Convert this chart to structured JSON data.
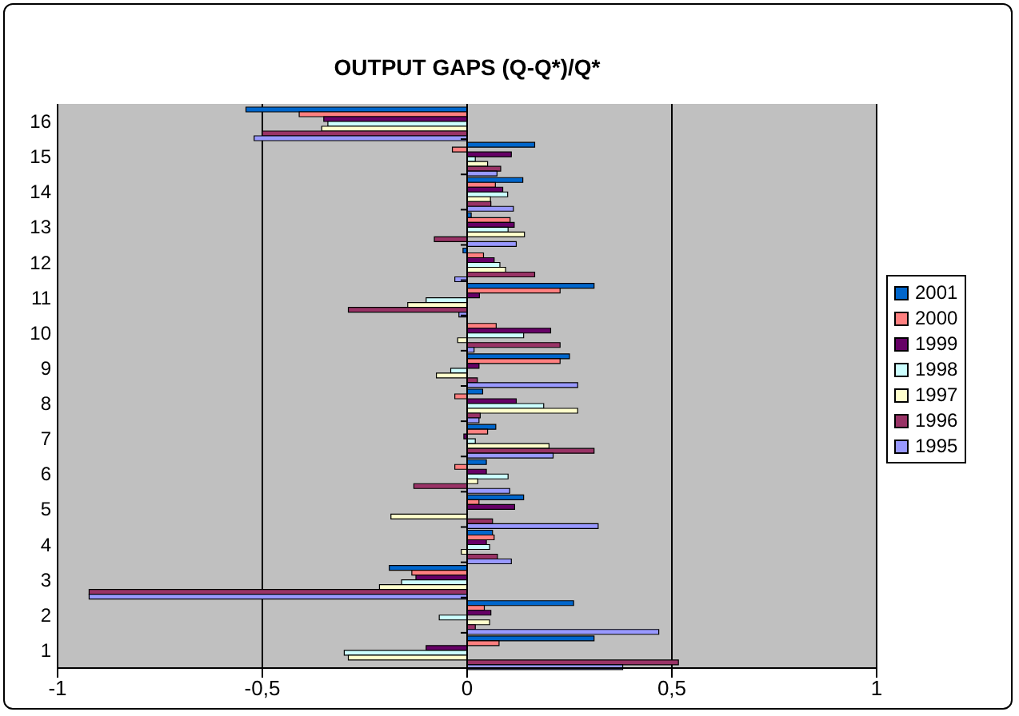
{
  "chart_data": {
    "type": "bar",
    "orientation": "horizontal",
    "title": "OUTPUT GAPS (Q-Q*)/Q*",
    "categories": [
      "16",
      "15",
      "14",
      "13",
      "12",
      "11",
      "10",
      "9",
      "8",
      "7",
      "6",
      "5",
      "4",
      "3",
      "2",
      "1"
    ],
    "series": [
      {
        "name": "2001",
        "color": "#0066cc",
        "values": [
          -0.54,
          0.165,
          0.136,
          0.01,
          -0.01,
          0.31,
          0,
          0.25,
          0.038,
          0.07,
          0.047,
          0.138,
          0.062,
          -0.19,
          0.26,
          0.31
        ]
      },
      {
        "name": "2000",
        "color": "#ff8080",
        "values": [
          -0.41,
          -0.036,
          0.069,
          0.105,
          0.04,
          0.227,
          0.071,
          0.227,
          -0.03,
          0.05,
          -0.03,
          0.029,
          0.066,
          -0.135,
          0.042,
          0.078
        ]
      },
      {
        "name": "1999",
        "color": "#660066",
        "values": [
          -0.35,
          0.108,
          0.087,
          0.115,
          0.066,
          0.03,
          0.204,
          0.029,
          0.12,
          -0.008,
          0.047,
          0.116,
          0.047,
          -0.125,
          0.058,
          -0.1
        ]
      },
      {
        "name": "1998",
        "color": "#ccffff",
        "values": [
          -0.34,
          0.02,
          0.099,
          0.1,
          0.08,
          -0.1,
          0.138,
          -0.04,
          0.187,
          0.02,
          0.1,
          0,
          0.055,
          -0.16,
          -0.068,
          -0.3
        ]
      },
      {
        "name": "1997",
        "color": "#ffffcc",
        "values": [
          -0.355,
          0.05,
          0.057,
          0.14,
          0.094,
          -0.145,
          -0.023,
          -0.075,
          0.27,
          0.2,
          0.026,
          -0.186,
          -0.014,
          -0.214,
          0.055,
          -0.29
        ]
      },
      {
        "name": "1996",
        "color": "#993366",
        "values": [
          -0.5,
          0.082,
          0.058,
          -0.08,
          0.165,
          -0.29,
          0.227,
          0.025,
          0.032,
          0.31,
          -0.13,
          0.062,
          0.074,
          -0.923,
          0.02,
          0.516
        ]
      },
      {
        "name": "1995",
        "color": "#9999ff",
        "values": [
          -0.52,
          0.073,
          0.113,
          0.12,
          -0.03,
          -0.02,
          0.017,
          0.27,
          0.029,
          0.21,
          0.104,
          0.32,
          0.108,
          -0.923,
          0.468,
          0.38
        ]
      }
    ],
    "xlim": [
      -1,
      1
    ],
    "xticks": [
      -1,
      {
        "value": -0.5,
        "label": "-0,5"
      },
      0,
      {
        "value": 0.5,
        "label": "0,5"
      },
      1
    ],
    "grid": "x",
    "legend": "right"
  }
}
